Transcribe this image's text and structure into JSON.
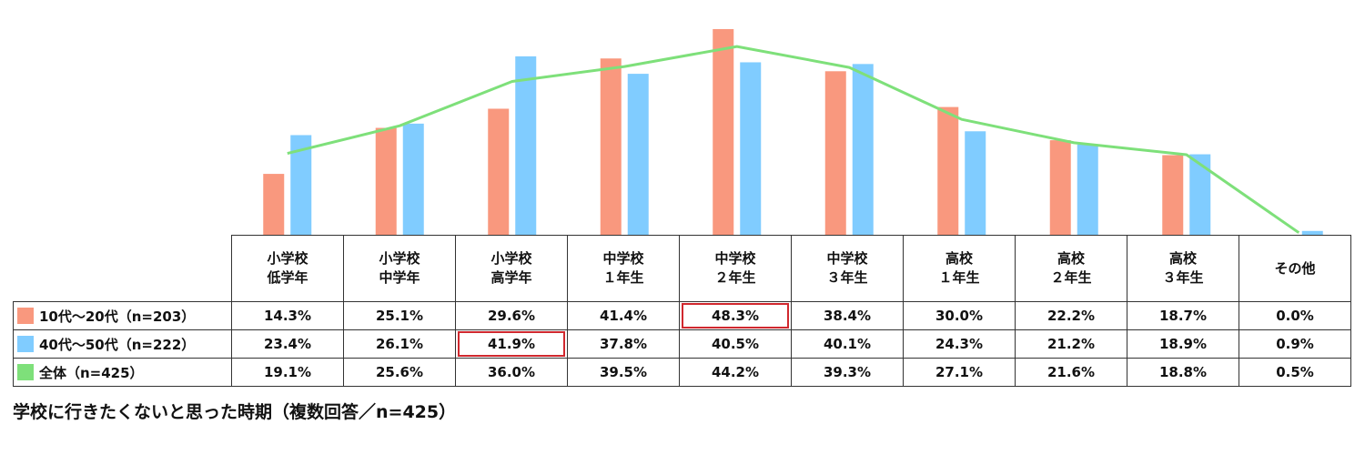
{
  "caption": "学校に行きたくないと思った時期（複数回答／n=425）",
  "chart_data": {
    "type": "bar",
    "categories": [
      [
        "小学校",
        "低学年"
      ],
      [
        "小学校",
        "中学年"
      ],
      [
        "小学校",
        "高学年"
      ],
      [
        "中学校",
        "１年生"
      ],
      [
        "中学校",
        "２年生"
      ],
      [
        "中学校",
        "３年生"
      ],
      [
        "高校",
        "１年生"
      ],
      [
        "高校",
        "２年生"
      ],
      [
        "高校",
        "３年生"
      ],
      [
        "その他"
      ]
    ],
    "series": [
      {
        "name": "10代～20代（n=203）",
        "type": "bar",
        "color": "#f9987e",
        "values": [
          14.3,
          25.1,
          29.6,
          41.4,
          48.3,
          38.4,
          30.0,
          22.2,
          18.7,
          0.0
        ],
        "labels": [
          "14.3%",
          "25.1%",
          "29.6%",
          "41.4%",
          "48.3%",
          "38.4%",
          "30.0%",
          "22.2%",
          "18.7%",
          "0.0%"
        ],
        "highlight_index": 4
      },
      {
        "name": "40代～50代（n=222）",
        "type": "bar",
        "color": "#80ccff",
        "values": [
          23.4,
          26.1,
          41.9,
          37.8,
          40.5,
          40.1,
          24.3,
          21.2,
          18.9,
          0.9
        ],
        "labels": [
          "23.4%",
          "26.1%",
          "41.9%",
          "37.8%",
          "40.5%",
          "40.1%",
          "24.3%",
          "21.2%",
          "18.9%",
          "0.9%"
        ],
        "highlight_index": 2
      },
      {
        "name": "全体（n=425）",
        "type": "line",
        "color": "#7ee07a",
        "values": [
          19.1,
          25.6,
          36.0,
          39.5,
          44.2,
          39.3,
          27.1,
          21.6,
          18.8,
          0.5
        ],
        "labels": [
          "19.1%",
          "25.6%",
          "36.0%",
          "39.5%",
          "44.2%",
          "39.3%",
          "27.1%",
          "21.6%",
          "18.8%",
          "0.5%"
        ],
        "highlight_index": null
      }
    ],
    "unit": "%",
    "ylim": [
      0,
      50
    ],
    "grid": false,
    "legend": "table"
  }
}
